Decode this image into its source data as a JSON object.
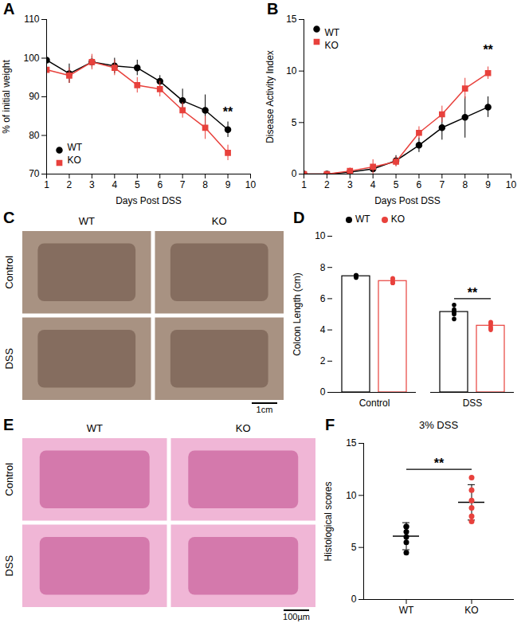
{
  "chart_data": [
    {
      "panel": "A",
      "type": "line",
      "x": [
        1,
        2,
        3,
        4,
        5,
        6,
        7,
        8,
        9
      ],
      "xlim": [
        1,
        10
      ],
      "xticks": [
        1,
        2,
        3,
        4,
        5,
        6,
        7,
        8,
        9,
        10
      ],
      "ylim": [
        70,
        110
      ],
      "yticks": [
        70,
        80,
        90,
        100,
        110
      ],
      "x_label": "Days Post DSS",
      "y_label": "% of initial weight",
      "legend": "lower left",
      "series": [
        {
          "name": "WT",
          "color": "#000000",
          "marker": "circle",
          "values": [
            99.5,
            96,
            99,
            98,
            97.5,
            94,
            89,
            86.5,
            81.5
          ],
          "errors": [
            2,
            2.5,
            1.5,
            2,
            2,
            1.5,
            3,
            4,
            2
          ]
        },
        {
          "name": "KO",
          "color": "#e8413c",
          "marker": "square",
          "values": [
            97,
            95.5,
            99,
            97.5,
            93,
            92,
            86.5,
            82,
            75.5
          ],
          "errors": [
            3,
            2,
            2,
            2,
            2,
            2,
            2,
            3,
            2
          ]
        }
      ],
      "annotations": [
        {
          "text": "**",
          "x": 9,
          "y": 86
        }
      ]
    },
    {
      "panel": "B",
      "type": "line",
      "x": [
        1,
        2,
        3,
        4,
        5,
        6,
        7,
        8,
        9
      ],
      "xlim": [
        1,
        10
      ],
      "xticks": [
        1,
        2,
        3,
        4,
        5,
        6,
        7,
        8,
        9,
        10
      ],
      "ylim": [
        0,
        15
      ],
      "yticks": [
        0,
        5,
        10,
        15
      ],
      "x_label": "Days Post DSS",
      "y_label": "Disease Activity Index",
      "legend": "upper left",
      "series": [
        {
          "name": "WT",
          "color": "#000000",
          "marker": "circle",
          "values": [
            0,
            0,
            0.2,
            0.5,
            1.3,
            2.8,
            4.5,
            5.5,
            6.5
          ],
          "errors": [
            0,
            0,
            0.2,
            0.3,
            0.5,
            0.7,
            1.2,
            2,
            1
          ]
        },
        {
          "name": "KO",
          "color": "#e8413c",
          "marker": "square",
          "values": [
            0,
            0,
            0.3,
            0.7,
            1.2,
            4,
            5.8,
            8.3,
            9.8
          ],
          "errors": [
            0,
            0,
            0.3,
            0.7,
            0.5,
            0.6,
            0.8,
            1,
            0.6
          ]
        }
      ],
      "annotations": [
        {
          "text": "**",
          "x": 9,
          "y": 12
        }
      ]
    },
    {
      "panel": "C",
      "type": "image",
      "columns": [
        "WT",
        "KO"
      ],
      "rows": [
        "Control",
        "DSS"
      ],
      "scale_bar": "1cm"
    },
    {
      "panel": "D",
      "type": "bar",
      "categories": [
        "Control",
        "DSS"
      ],
      "ylim": [
        0,
        10
      ],
      "yticks": [
        0,
        2,
        4,
        6,
        8,
        10
      ],
      "y_label": "Colcon Length (cm)",
      "legend": "top",
      "series": [
        {
          "name": "WT",
          "color": "#000000",
          "values": [
            7.44,
            5.15
          ],
          "errors": [
            0.06,
            0.3
          ],
          "points": [
            [
              7.5,
              7.45,
              7.4,
              7.35,
              7.5
            ],
            [
              5.6,
              5.3,
              5.1,
              5.0,
              4.7,
              5.2
            ]
          ]
        },
        {
          "name": "KO",
          "color": "#e8413c",
          "values": [
            7.13,
            4.27
          ],
          "errors": [
            0.13,
            0.19
          ],
          "points": [
            [
              7.25,
              7.0,
              7.1,
              7.3,
              7.0
            ],
            [
              4.5,
              4.2,
              4.0,
              4.35,
              4.1,
              4.45
            ]
          ]
        }
      ],
      "annotations": [
        {
          "text": "**",
          "category": "DSS",
          "between": [
            "WT",
            "KO"
          ],
          "y": 6
        }
      ]
    },
    {
      "panel": "E",
      "type": "image",
      "columns": [
        "WT",
        "KO"
      ],
      "rows": [
        "Control",
        "DSS"
      ],
      "scale_bar": "100µm"
    },
    {
      "panel": "F",
      "type": "scatter",
      "title": "3% DSS",
      "categories": [
        "WT",
        "KO"
      ],
      "colors": [
        "#000000",
        "#e8413c"
      ],
      "values": [
        6.08,
        9.33
      ],
      "errors": [
        1.3,
        1.7
      ],
      "points": [
        [
          6.5,
          6.0,
          7.0,
          5.5,
          4.5,
          7.0
        ],
        [
          11.7,
          10.5,
          9.5,
          8.8,
          7.5,
          8.0
        ]
      ],
      "ylim": [
        0,
        15
      ],
      "yticks": [
        0,
        5,
        10,
        15
      ],
      "y_label": "Histological scores",
      "annotations": [
        {
          "text": "**",
          "between": [
            "WT",
            "KO"
          ],
          "y": 12.5
        }
      ]
    }
  ]
}
